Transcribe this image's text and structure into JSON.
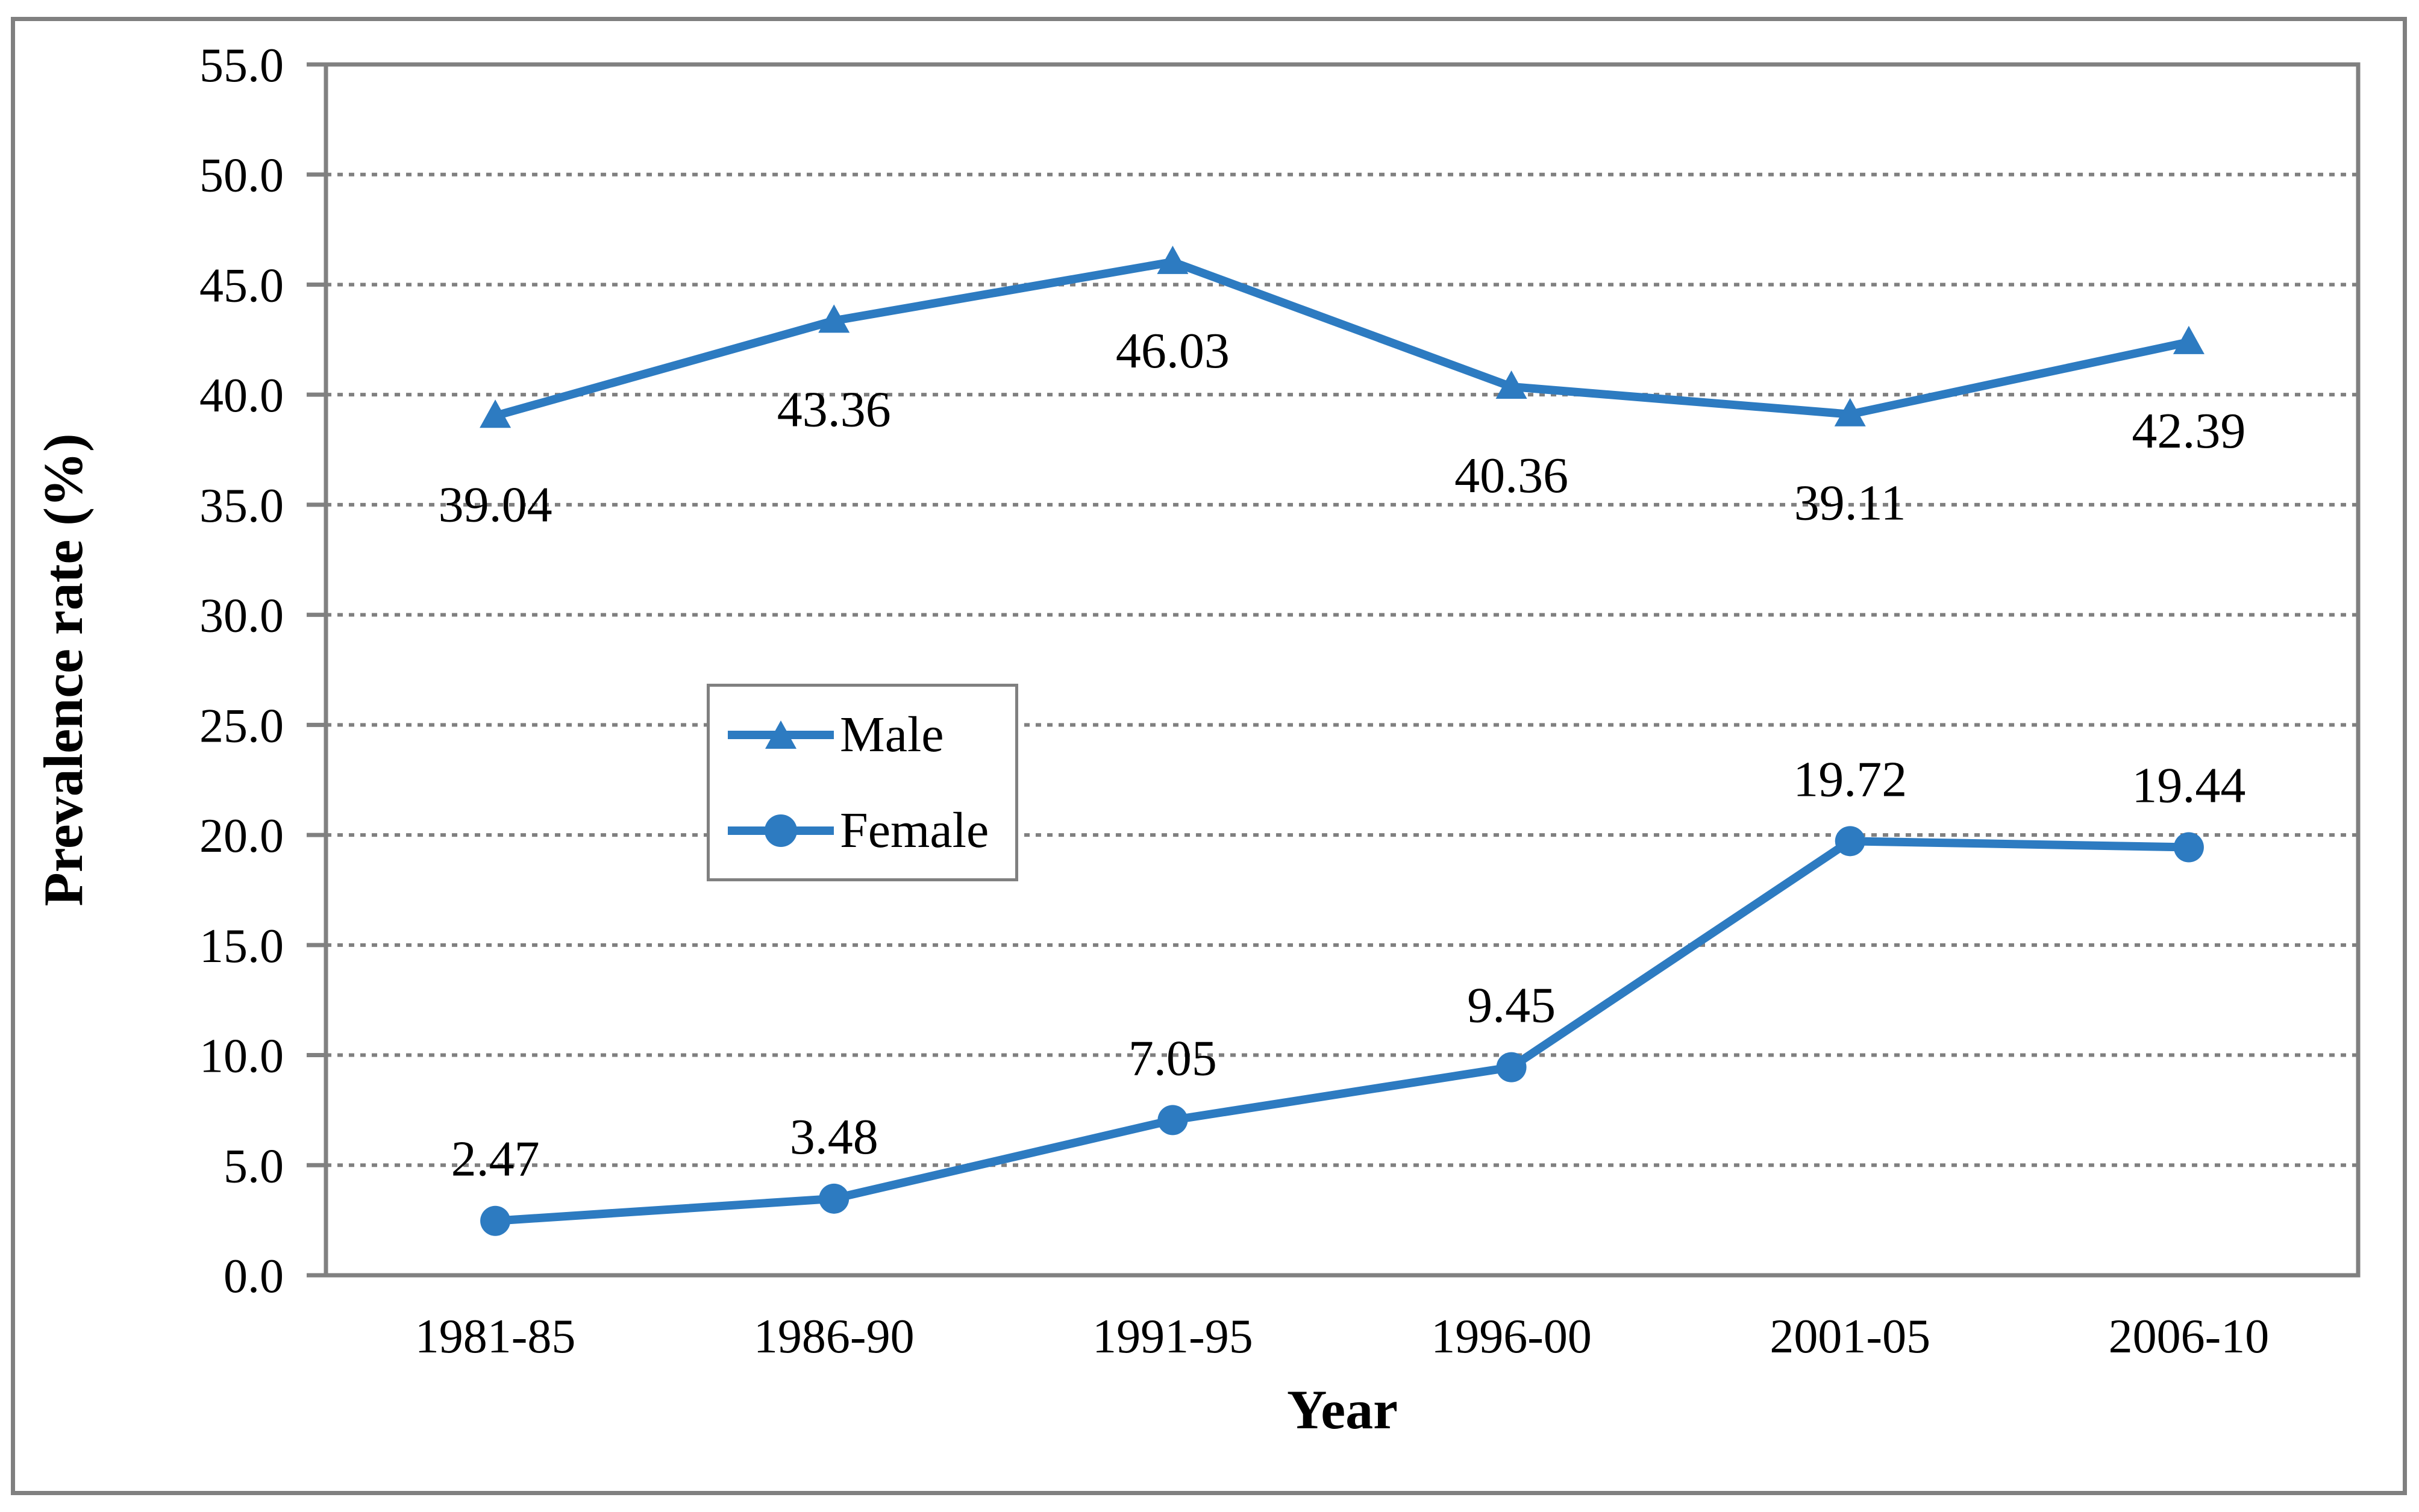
{
  "chart_data": {
    "type": "line",
    "title": "",
    "xlabel": "Year",
    "ylabel": "Prevalence rate (%)",
    "categories": [
      "1981-85",
      "1986-90",
      "1991-95",
      "1996-00",
      "2001-05",
      "2006-10"
    ],
    "series": [
      {
        "name": "Male",
        "marker": "triangle",
        "values": [
          39.04,
          43.36,
          46.03,
          40.36,
          39.11,
          42.39
        ],
        "data_labels": [
          "39.04",
          "43.36",
          "46.03",
          "40.36",
          "39.11",
          "42.39"
        ],
        "label_position": "below"
      },
      {
        "name": "Female",
        "marker": "circle",
        "values": [
          2.47,
          3.48,
          7.05,
          9.45,
          19.72,
          19.44
        ],
        "data_labels": [
          "2.47",
          "3.48",
          "7.05",
          "9.45",
          "19.72",
          "19.44"
        ],
        "label_position": "above"
      }
    ],
    "ylim": [
      0,
      55
    ],
    "ytick_step": 5,
    "ytick_labels": [
      "0.0",
      "5.0",
      "10.0",
      "15.0",
      "20.0",
      "25.0",
      "30.0",
      "35.0",
      "40.0",
      "45.0",
      "50.0",
      "55.0"
    ],
    "grid": "horizontal-dotted",
    "legend_position": "center-left-inside",
    "line_color": "#2d7bc1",
    "axis_color": "#808080"
  },
  "legend": {
    "items": [
      {
        "label": "Male",
        "marker": "triangle-icon"
      },
      {
        "label": "Female",
        "marker": "circle-icon"
      }
    ]
  }
}
